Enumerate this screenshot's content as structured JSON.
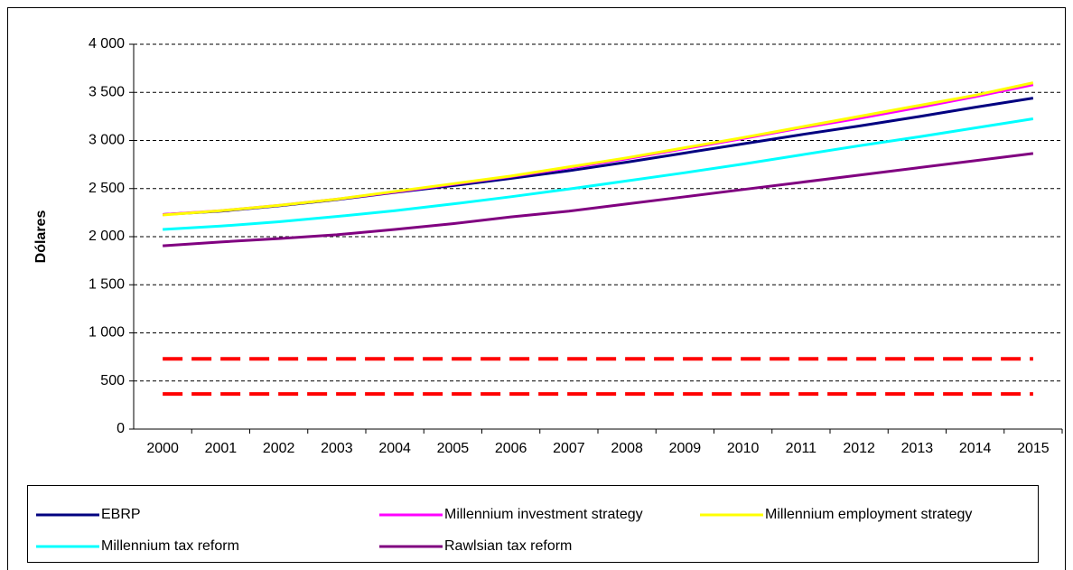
{
  "chart_data": {
    "type": "line",
    "y_label": "Dólares",
    "categories": [
      "2000",
      "2001",
      "2002",
      "2003",
      "2004",
      "2005",
      "2006",
      "2007",
      "2008",
      "2009",
      "2010",
      "2011",
      "2012",
      "2013",
      "2014",
      "2015"
    ],
    "ylim": [
      0,
      4000
    ],
    "yticks": [
      0,
      500,
      {
        "value": 1000,
        "label": "1 000"
      },
      {
        "value": 1500,
        "label": "1 500"
      },
      {
        "value": 2000,
        "label": "2 000"
      },
      {
        "value": 2500,
        "label": "2 500"
      },
      {
        "value": 3000,
        "label": "3 000"
      },
      {
        "value": 3500,
        "label": "3 500"
      },
      {
        "value": 4000,
        "label": "4 000"
      }
    ],
    "grid": true,
    "series": [
      {
        "name": "EBRP",
        "color": "#000080",
        "values": [
          2230,
          2265,
          2320,
          2385,
          2460,
          2530,
          2605,
          2685,
          2775,
          2870,
          2965,
          3060,
          3150,
          3245,
          3345,
          3440
        ]
      },
      {
        "name": "Millennium investment strategy",
        "color": "#ff00ff",
        "values": [
          2230,
          2270,
          2325,
          2390,
          2465,
          2545,
          2625,
          2715,
          2810,
          2915,
          3020,
          3130,
          3230,
          3340,
          3455,
          3580
        ]
      },
      {
        "name": "Millennium employment strategy",
        "color": "#ffff00",
        "values": [
          2225,
          2270,
          2325,
          2390,
          2470,
          2550,
          2630,
          2725,
          2820,
          2925,
          3030,
          3140,
          3250,
          3360,
          3470,
          3600
        ]
      },
      {
        "name": "Millennium tax reform",
        "color": "#00ffff",
        "values": [
          2075,
          2110,
          2155,
          2210,
          2270,
          2340,
          2415,
          2495,
          2580,
          2665,
          2755,
          2850,
          2945,
          3035,
          3130,
          3225
        ]
      },
      {
        "name": "Rawlsian tax reform",
        "color": "#800080",
        "values": [
          1905,
          1945,
          1980,
          2020,
          2075,
          2135,
          2205,
          2265,
          2340,
          2415,
          2490,
          2565,
          2640,
          2715,
          2790,
          2865
        ]
      },
      {
        "color": "#ff0000",
        "style": "dashed",
        "values": [
          730,
          730,
          730,
          730,
          730,
          730,
          730,
          730,
          730,
          730,
          730,
          730,
          730,
          730,
          730,
          730
        ]
      },
      {
        "color": "#ff0000",
        "style": "dashed",
        "values": [
          365,
          365,
          365,
          365,
          365,
          365,
          365,
          365,
          365,
          365,
          365,
          365,
          365,
          365,
          365,
          365
        ]
      }
    ]
  }
}
